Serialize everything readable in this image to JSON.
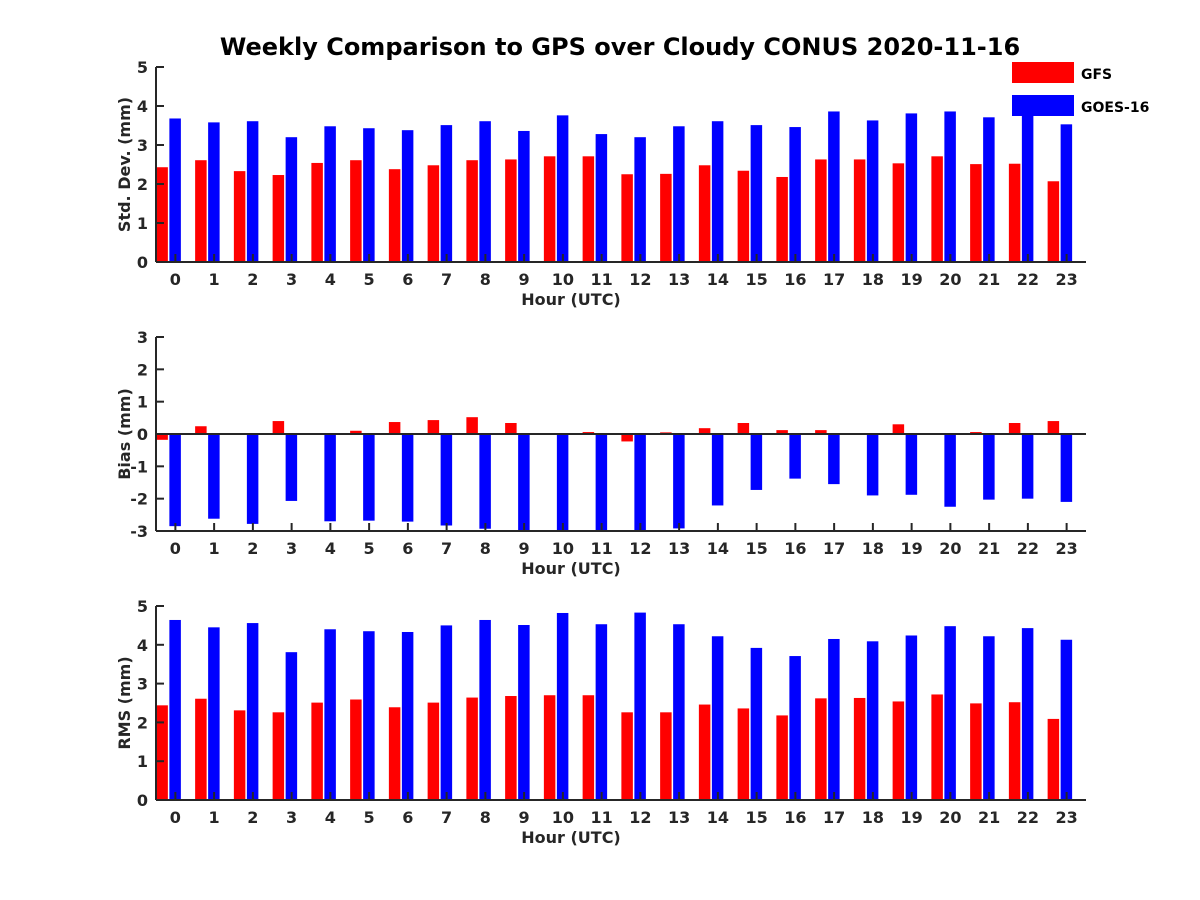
{
  "title": "Weekly Comparison to GPS over Cloudy CONUS 2020-11-16",
  "colors": {
    "GFS": "#ff0000",
    "GOES-16": "#0000ff"
  },
  "legend": {
    "placement": "top-right",
    "items": [
      "GFS",
      "GOES-16"
    ]
  },
  "chart_data": [
    {
      "type": "bar",
      "categories": [
        "0",
        "1",
        "2",
        "3",
        "4",
        "5",
        "6",
        "7",
        "8",
        "9",
        "10",
        "11",
        "12",
        "13",
        "14",
        "15",
        "16",
        "17",
        "18",
        "19",
        "20",
        "21",
        "22",
        "23"
      ],
      "xlabel": "Hour (UTC)",
      "ylabel": "Std. Dev. (mm)",
      "ylim": [
        0,
        5
      ],
      "yticks": [
        0,
        1,
        2,
        3,
        4,
        5
      ],
      "grid": false,
      "series": [
        {
          "name": "GFS",
          "values": [
            2.43,
            2.61,
            2.33,
            2.23,
            2.54,
            2.61,
            2.38,
            2.48,
            2.61,
            2.63,
            2.71,
            2.71,
            2.25,
            2.26,
            2.48,
            2.34,
            2.18,
            2.63,
            2.63,
            2.53,
            2.71,
            2.51,
            2.52,
            2.07
          ]
        },
        {
          "name": "GOES-16",
          "values": [
            3.68,
            3.58,
            3.61,
            3.2,
            3.48,
            3.43,
            3.38,
            3.51,
            3.61,
            3.36,
            3.76,
            3.28,
            3.2,
            3.48,
            3.61,
            3.51,
            3.46,
            3.86,
            3.63,
            3.81,
            3.86,
            3.71,
            3.94,
            3.53
          ]
        }
      ]
    },
    {
      "type": "bar",
      "categories": [
        "0",
        "1",
        "2",
        "3",
        "4",
        "5",
        "6",
        "7",
        "8",
        "9",
        "10",
        "11",
        "12",
        "13",
        "14",
        "15",
        "16",
        "17",
        "18",
        "19",
        "20",
        "21",
        "22",
        "23"
      ],
      "xlabel": "Hour (UTC)",
      "ylabel": "Bias (mm)",
      "ylim": [
        -3,
        3
      ],
      "yticks": [
        -3,
        -2,
        -1,
        0,
        1,
        2,
        3
      ],
      "grid": false,
      "zero_line": true,
      "series": [
        {
          "name": "GFS",
          "values": [
            -0.18,
            0.24,
            0.02,
            0.4,
            -0.02,
            0.1,
            0.37,
            0.43,
            0.52,
            0.34,
            -0.03,
            0.06,
            -0.23,
            0.05,
            0.18,
            0.34,
            0.12,
            0.12,
            0.02,
            0.3,
            0.03,
            0.06,
            0.34,
            0.4
          ]
        },
        {
          "name": "GOES-16",
          "values": [
            -2.85,
            -2.62,
            -2.78,
            -2.07,
            -2.7,
            -2.68,
            -2.71,
            -2.83,
            -2.93,
            -3.0,
            -3.0,
            -3.0,
            -3.0,
            -2.92,
            -2.21,
            -1.73,
            -1.38,
            -1.55,
            -1.9,
            -1.88,
            -2.25,
            -2.03,
            -2.0,
            -2.1
          ]
        }
      ]
    },
    {
      "type": "bar",
      "categories": [
        "0",
        "1",
        "2",
        "3",
        "4",
        "5",
        "6",
        "7",
        "8",
        "9",
        "10",
        "11",
        "12",
        "13",
        "14",
        "15",
        "16",
        "17",
        "18",
        "19",
        "20",
        "21",
        "22",
        "23"
      ],
      "xlabel": "Hour (UTC)",
      "ylabel": "RMS (mm)",
      "ylim": [
        0,
        5
      ],
      "yticks": [
        0,
        1,
        2,
        3,
        4,
        5
      ],
      "grid": false,
      "series": [
        {
          "name": "GFS",
          "values": [
            2.44,
            2.61,
            2.31,
            2.26,
            2.51,
            2.59,
            2.39,
            2.51,
            2.64,
            2.68,
            2.7,
            2.7,
            2.26,
            2.26,
            2.46,
            2.36,
            2.18,
            2.62,
            2.63,
            2.54,
            2.72,
            2.49,
            2.52,
            2.09
          ]
        },
        {
          "name": "GOES-16",
          "values": [
            4.64,
            4.45,
            4.56,
            3.81,
            4.4,
            4.35,
            4.33,
            4.5,
            4.64,
            4.51,
            4.82,
            4.53,
            4.83,
            4.53,
            4.22,
            3.92,
            3.71,
            4.15,
            4.09,
            4.24,
            4.48,
            4.22,
            4.43,
            4.13
          ]
        }
      ]
    }
  ]
}
